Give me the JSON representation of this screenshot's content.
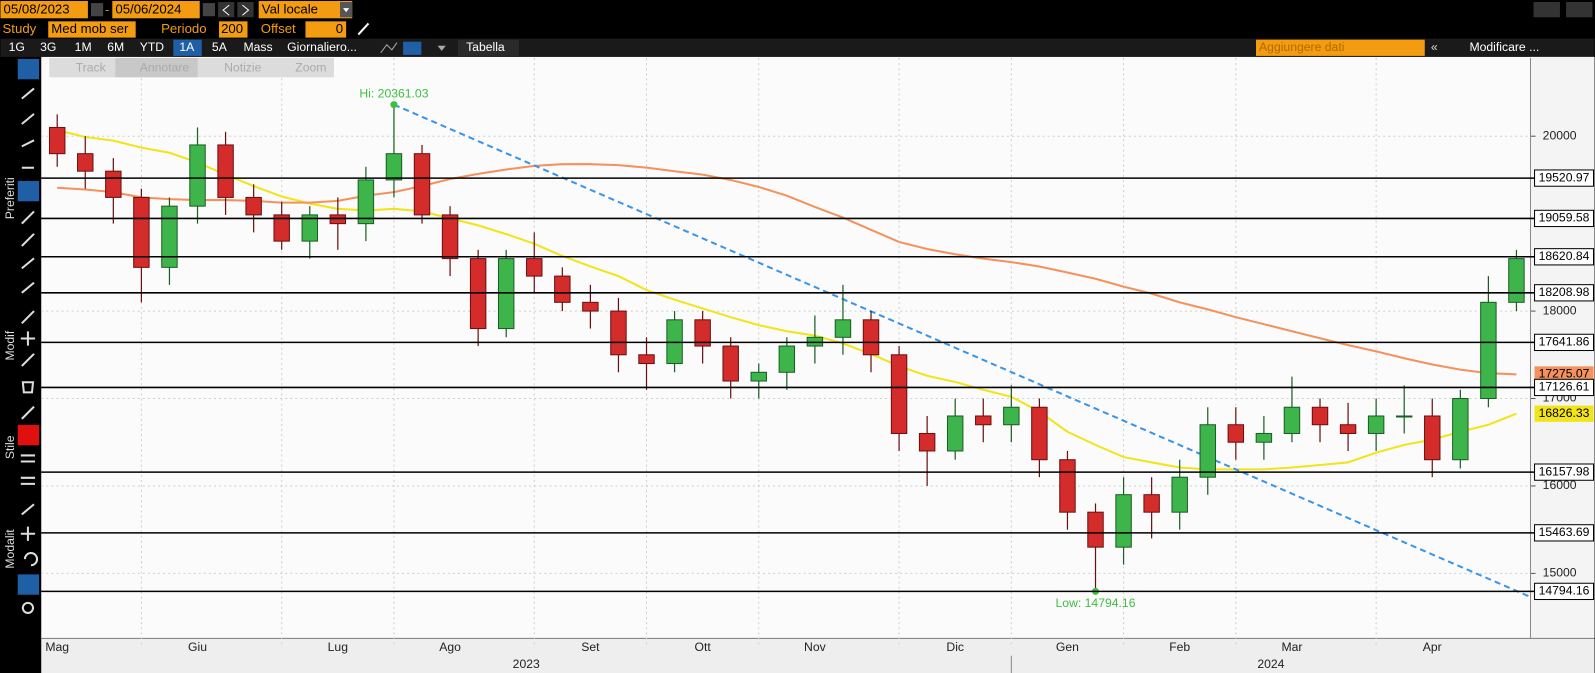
{
  "toolbar": {
    "start_date": "05/08/2023",
    "end_date": "05/06/2024",
    "currency": "Val locale",
    "study_label": "Study",
    "study": "Med mob ser",
    "period_label": "Periodo",
    "period": "200",
    "offset_label": "Offset",
    "offset": "0",
    "ranges": [
      "1G",
      "3G",
      "1M",
      "6M",
      "YTD",
      "1A",
      "5A",
      "Mass"
    ],
    "frequency": "Giornaliero...",
    "table": "Tabella",
    "add_data": "Aggiungere dati",
    "edit": "Modificare ...",
    "tools": [
      "Track",
      "Annotare",
      "Notizie",
      "Zoom"
    ],
    "side": [
      "Preferiti",
      "Modif",
      "Stile",
      "Modalit"
    ]
  },
  "chart_data": {
    "type": "candlestick",
    "categories": [
      "Mag",
      null,
      null,
      null,
      null,
      "Giu",
      null,
      null,
      null,
      null,
      "Lug",
      null,
      null,
      null,
      "Ago",
      null,
      null,
      null,
      null,
      "Set",
      null,
      null,
      null,
      "Ott",
      null,
      null,
      null,
      "Nov",
      null,
      null,
      null,
      null,
      "Dic",
      null,
      null,
      null,
      "Gen",
      null,
      null,
      null,
      "Feb",
      null,
      null,
      null,
      "Mar",
      null,
      null,
      null,
      null,
      "Apr",
      null,
      null,
      null
    ],
    "years": [
      "2023",
      "2024"
    ],
    "open": [
      20100,
      19800,
      19600,
      19300,
      18500,
      19200,
      19900,
      19300,
      19100,
      18800,
      19100,
      19000,
      19500,
      19800,
      19100,
      18600,
      17800,
      18600,
      18400,
      18100,
      18000,
      17500,
      17400,
      17900,
      17600,
      17200,
      17300,
      17600,
      17700,
      17900,
      17500,
      16600,
      16400,
      16800,
      16700,
      16900,
      16300,
      15700,
      15300,
      15900,
      15700,
      16100,
      16700,
      16500,
      16600,
      16900,
      16700,
      16600,
      16800,
      16800,
      16300,
      17000,
      18100
    ],
    "high": [
      20250,
      20000,
      19750,
      19400,
      19300,
      20100,
      20050,
      19450,
      19250,
      19200,
      19300,
      19650,
      20361.03,
      19900,
      19200,
      18700,
      18700,
      18900,
      18500,
      18300,
      18150,
      17700,
      18000,
      18000,
      17700,
      17400,
      17700,
      17950,
      18300,
      18000,
      17600,
      16800,
      17000,
      17000,
      17150,
      17000,
      16400,
      15800,
      16100,
      16100,
      16300,
      16900,
      16900,
      16800,
      17250,
      17000,
      16950,
      17000,
      17150,
      17000,
      17100,
      18400,
      18700
    ],
    "low": [
      19650,
      19400,
      19000,
      18100,
      18300,
      19000,
      19100,
      18900,
      18700,
      18600,
      18700,
      18800,
      19300,
      19000,
      18400,
      17600,
      17700,
      18200,
      18000,
      17800,
      17300,
      17100,
      17300,
      17400,
      17000,
      17000,
      17100,
      17400,
      17500,
      17300,
      16400,
      16000,
      16300,
      16500,
      16500,
      16100,
      15500,
      14794.16,
      15100,
      15400,
      15500,
      15900,
      16300,
      16300,
      16500,
      16500,
      16400,
      16400,
      16600,
      16100,
      16200,
      16900,
      18000
    ],
    "close": [
      19800,
      19600,
      19300,
      18500,
      19200,
      19900,
      19300,
      19100,
      18800,
      19100,
      19000,
      19500,
      19800,
      19100,
      18600,
      17800,
      18600,
      18400,
      18100,
      18000,
      17500,
      17400,
      17900,
      17600,
      17200,
      17300,
      17600,
      17700,
      17900,
      17500,
      16600,
      16400,
      16800,
      16700,
      16900,
      16300,
      15700,
      15300,
      15900,
      15700,
      16100,
      16700,
      16500,
      16600,
      16900,
      16700,
      16600,
      16800,
      16800,
      16300,
      17000,
      18100,
      18600
    ],
    "up_color": "#3db54a",
    "down_color": "#d42b2b",
    "lines": [
      {
        "color": "#f2e418",
        "values": [
          20070,
          19990,
          19950,
          19870,
          19810,
          19700,
          19560,
          19430,
          19310,
          19230,
          19170,
          19150,
          19170,
          19140,
          19060,
          18980,
          18880,
          18770,
          18630,
          18510,
          18400,
          18240,
          18130,
          18030,
          17930,
          17840,
          17770,
          17720,
          17630,
          17510,
          17370,
          17260,
          17190,
          17100,
          17020,
          16850,
          16620,
          16470,
          16330,
          16270,
          16210,
          16190,
          16190,
          16190,
          16210,
          16240,
          16270,
          16380,
          16470,
          16530,
          16620,
          16700,
          16826.33
        ]
      },
      {
        "color": "#f4915c",
        "values": [
          19410,
          19390,
          19360,
          19300,
          19280,
          19270,
          19270,
          19260,
          19240,
          19240,
          19260,
          19320,
          19360,
          19430,
          19510,
          19570,
          19620,
          19660,
          19680,
          19680,
          19670,
          19640,
          19600,
          19560,
          19500,
          19420,
          19320,
          19190,
          19070,
          18930,
          18790,
          18710,
          18650,
          18600,
          18560,
          18510,
          18440,
          18370,
          18280,
          18200,
          18100,
          18020,
          17930,
          17850,
          17770,
          17690,
          17610,
          17540,
          17460,
          17390,
          17330,
          17290,
          17275.07
        ]
      }
    ],
    "levels": [
      19520.97,
      19059.58,
      18620.84,
      18208.98,
      17641.86,
      17126.61,
      16157.98,
      15463.69,
      14794.16
    ],
    "hi_label": "Hi: 20361.03",
    "low_label": "Low: 14794.16",
    "trendline": [
      20361.03,
      14730
    ],
    "ylim": [
      14256,
      20895
    ],
    "yticks": [
      15000,
      16000,
      17000,
      18000,
      20000
    ],
    "grid": true
  }
}
